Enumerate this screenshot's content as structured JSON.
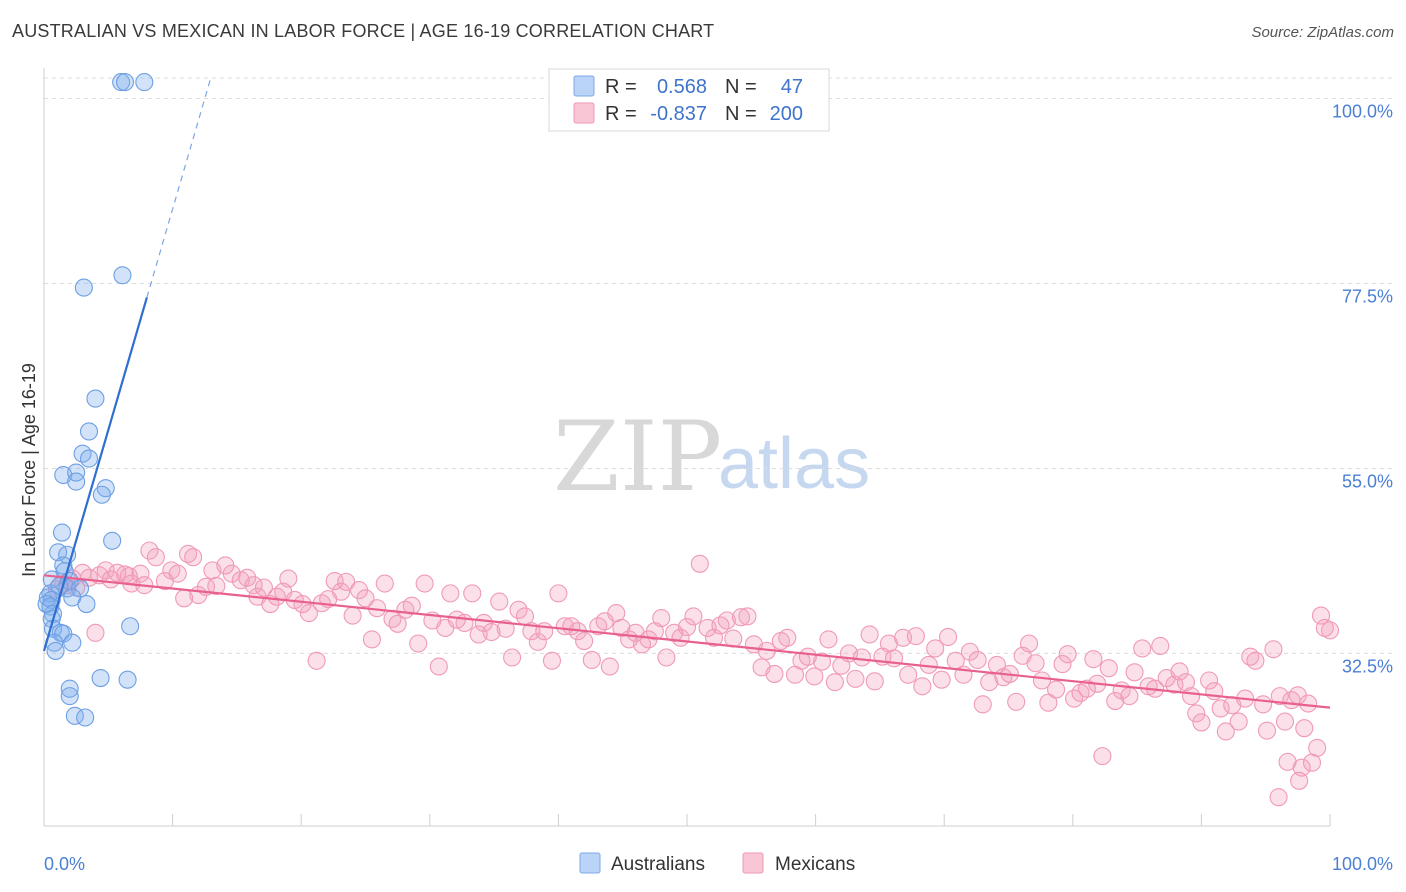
{
  "header": {
    "title": "AUSTRALIAN VS MEXICAN IN LABOR FORCE | AGE 16-19 CORRELATION CHART",
    "source": "Source: ZipAtlas.com"
  },
  "watermark": {
    "left": "ZIP",
    "right": "atlas"
  },
  "legend_box": {
    "rows": [
      {
        "r_label": "R =",
        "r_value": "0.568",
        "n_label": "N =",
        "n_value": "47",
        "color": "#7fb0ef"
      },
      {
        "r_label": "R =",
        "r_value": "-0.837",
        "n_label": "N =",
        "n_value": "200",
        "color": "#f4a0bc"
      }
    ]
  },
  "chart_data": {
    "type": "scatter",
    "title": "AUSTRALIAN VS MEXICAN IN LABOR FORCE | AGE 16-19 CORRELATION CHART",
    "xlabel": "",
    "ylabel": "In Labor Force | Age 16-19",
    "x_tick_labels": [
      "0.0%",
      "100.0%"
    ],
    "y_tick_labels": [
      "100.0%",
      "77.5%",
      "55.0%",
      "32.5%"
    ],
    "y_tick_values": [
      100.0,
      77.5,
      55.0,
      32.5
    ],
    "xlim": [
      0,
      100
    ],
    "ylim": [
      11.5,
      102.5
    ],
    "grid": "horizontal dashed",
    "legend_position": "top-center and bottom",
    "colors": {
      "australians": "#6fa3ea",
      "mexicans": "#f19ab8",
      "australians_line": "#2e6fd0",
      "mexicans_line": "#e8608e"
    },
    "series": [
      {
        "name": "Australians",
        "R": 0.568,
        "N": 47,
        "trend": {
          "x": [
            0.0,
            8.0
          ],
          "y": [
            32.8,
            75.8
          ],
          "dashed_extension_to_x": 13.0
        },
        "points": [
          [
            6.0,
            102.0
          ],
          [
            6.3,
            102.0
          ],
          [
            7.8,
            102.0
          ],
          [
            3.1,
            77.0
          ],
          [
            6.1,
            78.5
          ],
          [
            4.0,
            63.5
          ],
          [
            3.5,
            59.5
          ],
          [
            3.0,
            56.8
          ],
          [
            3.5,
            56.2
          ],
          [
            1.5,
            54.2
          ],
          [
            2.5,
            54.5
          ],
          [
            2.5,
            53.4
          ],
          [
            4.8,
            52.6
          ],
          [
            4.5,
            51.8
          ],
          [
            1.4,
            47.2
          ],
          [
            5.3,
            46.2
          ],
          [
            1.1,
            44.8
          ],
          [
            1.8,
            44.5
          ],
          [
            1.5,
            43.2
          ],
          [
            1.6,
            42.5
          ],
          [
            0.6,
            41.5
          ],
          [
            2.0,
            41.3
          ],
          [
            1.8,
            40.4
          ],
          [
            2.8,
            40.4
          ],
          [
            0.5,
            39.8
          ],
          [
            1.2,
            40.7
          ],
          [
            0.3,
            39.3
          ],
          [
            0.6,
            39.0
          ],
          [
            0.2,
            38.5
          ],
          [
            2.2,
            39.3
          ],
          [
            3.3,
            38.5
          ],
          [
            0.5,
            38.2
          ],
          [
            0.7,
            37.3
          ],
          [
            0.6,
            36.7
          ],
          [
            0.7,
            35.5
          ],
          [
            6.7,
            35.8
          ],
          [
            1.3,
            35.0
          ],
          [
            1.5,
            34.9
          ],
          [
            0.8,
            33.8
          ],
          [
            2.2,
            33.8
          ],
          [
            0.9,
            32.8
          ],
          [
            4.4,
            29.5
          ],
          [
            6.5,
            29.3
          ],
          [
            2.0,
            28.2
          ],
          [
            2.0,
            27.3
          ],
          [
            2.4,
            24.9
          ],
          [
            3.2,
            24.7
          ]
        ]
      },
      {
        "name": "Mexicans",
        "R": -0.837,
        "N": 200,
        "trend": {
          "x": [
            0.0,
            100.0
          ],
          "y": [
            42.0,
            25.9
          ]
        },
        "points": [
          [
            1.0,
            40.3
          ],
          [
            1.5,
            41.0
          ],
          [
            1.8,
            40.8
          ],
          [
            2.2,
            41.6
          ],
          [
            2.5,
            40.5
          ],
          [
            3.0,
            42.3
          ],
          [
            3.5,
            41.7
          ],
          [
            4.0,
            35.0
          ],
          [
            4.3,
            42.0
          ],
          [
            4.8,
            42.6
          ],
          [
            5.2,
            41.5
          ],
          [
            5.7,
            42.3
          ],
          [
            6.3,
            42.1
          ],
          [
            6.6,
            41.9
          ],
          [
            6.8,
            41.0
          ],
          [
            7.5,
            42.2
          ],
          [
            7.8,
            40.8
          ],
          [
            8.2,
            45.0
          ],
          [
            8.7,
            44.2
          ],
          [
            9.4,
            41.3
          ],
          [
            9.9,
            42.6
          ],
          [
            10.4,
            42.2
          ],
          [
            10.9,
            39.2
          ],
          [
            11.2,
            44.6
          ],
          [
            11.6,
            44.2
          ],
          [
            12.0,
            39.6
          ],
          [
            12.6,
            40.6
          ],
          [
            13.1,
            42.6
          ],
          [
            13.4,
            40.7
          ],
          [
            14.1,
            43.2
          ],
          [
            14.6,
            42.2
          ],
          [
            15.3,
            41.4
          ],
          [
            15.8,
            41.7
          ],
          [
            16.3,
            40.8
          ],
          [
            16.6,
            39.4
          ],
          [
            17.1,
            40.5
          ],
          [
            17.6,
            38.5
          ],
          [
            18.1,
            39.4
          ],
          [
            18.6,
            40.0
          ],
          [
            19.0,
            41.6
          ],
          [
            19.5,
            39.0
          ],
          [
            20.1,
            38.5
          ],
          [
            20.6,
            37.4
          ],
          [
            21.2,
            31.6
          ],
          [
            21.6,
            38.6
          ],
          [
            22.1,
            39.1
          ],
          [
            22.6,
            41.3
          ],
          [
            23.1,
            40.0
          ],
          [
            23.5,
            41.2
          ],
          [
            24.0,
            37.1
          ],
          [
            24.5,
            40.2
          ],
          [
            25.0,
            39.2
          ],
          [
            25.5,
            34.2
          ],
          [
            25.9,
            38.0
          ],
          [
            26.5,
            41.0
          ],
          [
            27.1,
            36.7
          ],
          [
            27.5,
            36.1
          ],
          [
            28.1,
            37.8
          ],
          [
            28.6,
            38.3
          ],
          [
            29.1,
            33.7
          ],
          [
            29.6,
            41.0
          ],
          [
            30.2,
            36.5
          ],
          [
            30.7,
            30.9
          ],
          [
            31.2,
            35.6
          ],
          [
            31.6,
            39.8
          ],
          [
            32.1,
            36.6
          ],
          [
            32.7,
            36.2
          ],
          [
            33.3,
            39.8
          ],
          [
            33.8,
            34.8
          ],
          [
            34.2,
            36.2
          ],
          [
            34.8,
            35.1
          ],
          [
            35.4,
            38.8
          ],
          [
            35.9,
            35.5
          ],
          [
            36.4,
            32.0
          ],
          [
            36.9,
            37.8
          ],
          [
            37.4,
            37.0
          ],
          [
            37.9,
            35.2
          ],
          [
            38.4,
            33.9
          ],
          [
            38.9,
            35.2
          ],
          [
            39.5,
            31.6
          ],
          [
            40.0,
            39.8
          ],
          [
            40.5,
            35.8
          ],
          [
            41.0,
            35.8
          ],
          [
            41.5,
            35.2
          ],
          [
            42.0,
            34.0
          ],
          [
            42.6,
            31.7
          ],
          [
            43.1,
            35.8
          ],
          [
            43.6,
            36.4
          ],
          [
            44.0,
            30.9
          ],
          [
            44.5,
            37.4
          ],
          [
            44.9,
            35.6
          ],
          [
            45.5,
            34.2
          ],
          [
            46.0,
            35.0
          ],
          [
            46.5,
            33.6
          ],
          [
            47.0,
            34.2
          ],
          [
            47.5,
            35.2
          ],
          [
            48.0,
            36.8
          ],
          [
            48.4,
            32.0
          ],
          [
            49.0,
            35.0
          ],
          [
            49.5,
            34.4
          ],
          [
            50.0,
            35.7
          ],
          [
            50.5,
            37.0
          ],
          [
            51.0,
            43.4
          ],
          [
            51.6,
            35.6
          ],
          [
            52.1,
            34.4
          ],
          [
            52.6,
            35.9
          ],
          [
            53.1,
            36.5
          ],
          [
            53.6,
            34.3
          ],
          [
            54.2,
            36.9
          ],
          [
            54.7,
            37.0
          ],
          [
            55.2,
            33.6
          ],
          [
            55.8,
            30.8
          ],
          [
            56.2,
            32.8
          ],
          [
            56.8,
            30.0
          ],
          [
            57.3,
            34.0
          ],
          [
            57.8,
            34.4
          ],
          [
            58.4,
            29.9
          ],
          [
            58.9,
            31.6
          ],
          [
            59.4,
            32.1
          ],
          [
            59.9,
            29.7
          ],
          [
            60.5,
            31.5
          ],
          [
            61.0,
            34.2
          ],
          [
            61.5,
            29.0
          ],
          [
            62.0,
            31.0
          ],
          [
            62.6,
            32.5
          ],
          [
            63.1,
            29.4
          ],
          [
            63.6,
            32.0
          ],
          [
            64.2,
            34.8
          ],
          [
            64.6,
            29.1
          ],
          [
            65.2,
            32.1
          ],
          [
            65.7,
            33.7
          ],
          [
            66.1,
            31.9
          ],
          [
            66.8,
            34.4
          ],
          [
            67.2,
            29.9
          ],
          [
            67.8,
            34.6
          ],
          [
            68.3,
            28.5
          ],
          [
            68.8,
            31.1
          ],
          [
            69.3,
            33.1
          ],
          [
            69.8,
            29.3
          ],
          [
            70.3,
            34.5
          ],
          [
            70.9,
            31.6
          ],
          [
            71.5,
            29.9
          ],
          [
            72.0,
            32.7
          ],
          [
            72.6,
            31.7
          ],
          [
            73.0,
            26.3
          ],
          [
            73.5,
            29.0
          ],
          [
            74.1,
            31.1
          ],
          [
            74.6,
            29.6
          ],
          [
            75.1,
            30.0
          ],
          [
            75.6,
            26.6
          ],
          [
            76.1,
            32.2
          ],
          [
            76.6,
            33.7
          ],
          [
            77.1,
            31.3
          ],
          [
            77.6,
            29.2
          ],
          [
            78.1,
            26.5
          ],
          [
            78.7,
            28.1
          ],
          [
            79.2,
            31.2
          ],
          [
            79.6,
            32.4
          ],
          [
            80.1,
            27.0
          ],
          [
            80.6,
            27.7
          ],
          [
            81.1,
            28.2
          ],
          [
            81.6,
            31.8
          ],
          [
            81.9,
            28.8
          ],
          [
            82.3,
            20.0
          ],
          [
            82.8,
            30.7
          ],
          [
            83.3,
            26.7
          ],
          [
            83.8,
            28.0
          ],
          [
            84.4,
            27.3
          ],
          [
            84.8,
            30.2
          ],
          [
            85.4,
            33.1
          ],
          [
            85.9,
            28.5
          ],
          [
            86.4,
            28.2
          ],
          [
            86.8,
            33.4
          ],
          [
            87.3,
            29.5
          ],
          [
            87.9,
            28.7
          ],
          [
            88.3,
            30.3
          ],
          [
            88.8,
            29.0
          ],
          [
            89.2,
            27.3
          ],
          [
            89.6,
            25.2
          ],
          [
            90.0,
            24.1
          ],
          [
            90.6,
            29.2
          ],
          [
            91.0,
            27.9
          ],
          [
            91.5,
            25.8
          ],
          [
            91.9,
            23.0
          ],
          [
            92.4,
            26.2
          ],
          [
            92.9,
            24.2
          ],
          [
            93.4,
            27.0
          ],
          [
            93.8,
            32.1
          ],
          [
            94.2,
            31.6
          ],
          [
            94.8,
            26.3
          ],
          [
            95.1,
            23.1
          ],
          [
            95.6,
            33.0
          ],
          [
            96.1,
            27.3
          ],
          [
            96.5,
            24.2
          ],
          [
            96.7,
            19.3
          ],
          [
            97.0,
            26.8
          ],
          [
            97.5,
            27.4
          ],
          [
            97.8,
            18.6
          ],
          [
            98.0,
            23.4
          ],
          [
            98.3,
            26.4
          ],
          [
            98.6,
            19.2
          ],
          [
            99.0,
            21.0
          ],
          [
            99.3,
            37.1
          ],
          [
            100.0,
            35.3
          ],
          [
            99.6,
            35.6
          ],
          [
            96.0,
            15.0
          ],
          [
            97.6,
            17.0
          ]
        ]
      }
    ]
  },
  "bottom_legend": {
    "items": [
      "Australians",
      "Mexicans"
    ]
  }
}
